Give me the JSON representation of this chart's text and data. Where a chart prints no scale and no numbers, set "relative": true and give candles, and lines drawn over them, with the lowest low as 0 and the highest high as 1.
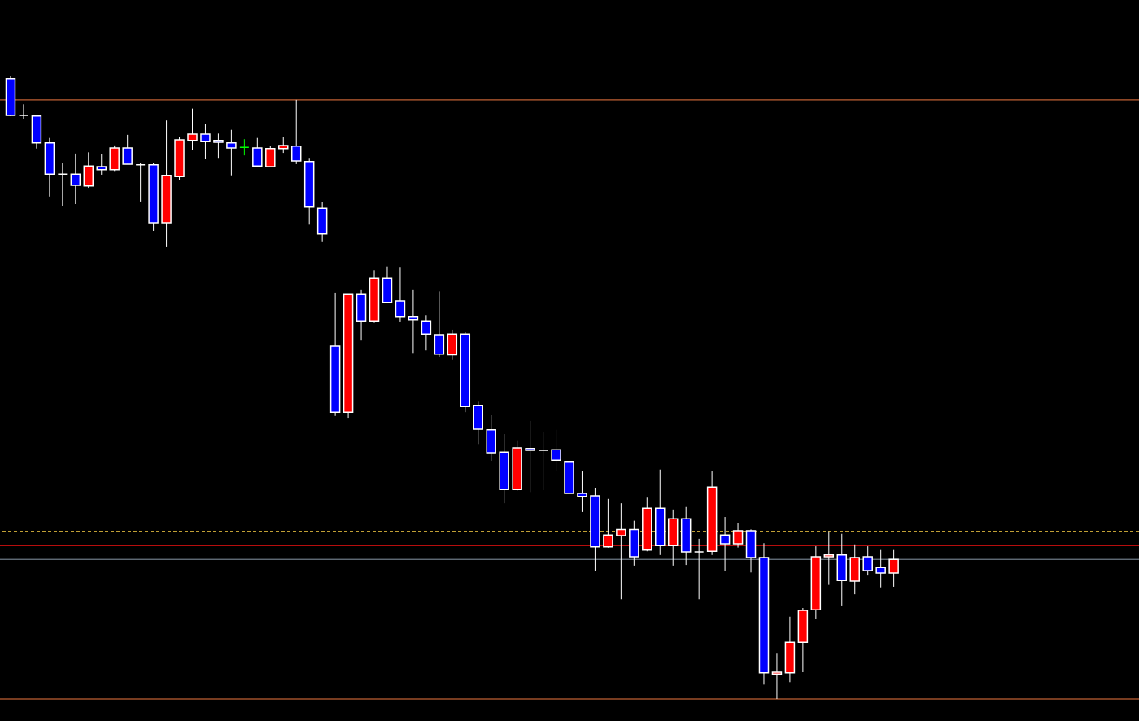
{
  "chart_data": {
    "type": "candlestick",
    "relative": true,
    "categories": [
      null,
      null,
      null,
      null,
      null,
      null,
      null,
      null,
      null,
      null,
      null,
      null,
      null,
      null,
      null,
      null,
      null,
      null,
      null,
      null,
      null,
      null,
      null,
      null,
      null,
      null,
      null,
      null,
      null,
      null,
      null,
      null,
      null,
      null,
      null,
      null,
      null,
      null,
      null,
      null,
      null,
      null,
      null,
      null,
      null,
      null,
      null,
      null,
      null,
      null,
      null,
      null,
      null,
      null,
      null,
      null,
      null,
      null,
      null,
      null,
      null,
      null,
      null,
      null,
      null,
      null,
      null,
      null,
      null
    ],
    "ohlc": [
      [
        0.995,
        1,
        0.935,
        0.936
      ],
      [
        0.936,
        0.954,
        0.93,
        0.936
      ],
      [
        0.935,
        0.936,
        0.883,
        0.892
      ],
      [
        0.892,
        0.9,
        0.806,
        0.842
      ],
      [
        0.842,
        0.86,
        0.791,
        0.842
      ],
      [
        0.842,
        0.875,
        0.794,
        0.824
      ],
      [
        0.823,
        0.877,
        0.82,
        0.855
      ],
      [
        0.854,
        0.874,
        0.841,
        0.849
      ],
      [
        0.849,
        0.888,
        0.847,
        0.884
      ],
      [
        0.884,
        0.905,
        0.858,
        0.858
      ],
      [
        0.857,
        0.86,
        0.798,
        0.857
      ],
      [
        0.857,
        0.86,
        0.751,
        0.764
      ],
      [
        0.764,
        0.928,
        0.725,
        0.84
      ],
      [
        0.838,
        0.901,
        0.832,
        0.897
      ],
      [
        0.896,
        0.947,
        0.881,
        0.906
      ],
      [
        0.906,
        0.923,
        0.867,
        0.894
      ],
      [
        0.896,
        0.907,
        0.868,
        0.893
      ],
      [
        0.892,
        0.913,
        0.84,
        0.884
      ],
      [
        0.885,
        0.898,
        0.872,
        0.885
      ],
      [
        0.884,
        0.9,
        0.853,
        0.855
      ],
      [
        0.854,
        0.887,
        0.854,
        0.883
      ],
      [
        0.883,
        0.902,
        0.876,
        0.888
      ],
      [
        0.887,
        0.961,
        0.858,
        0.863
      ],
      [
        0.862,
        0.868,
        0.761,
        0.789
      ],
      [
        0.787,
        0.797,
        0.733,
        0.746
      ],
      [
        0.566,
        0.652,
        0.454,
        0.46
      ],
      [
        0.46,
        0.649,
        0.451,
        0.649
      ],
      [
        0.649,
        0.656,
        0.576,
        0.606
      ],
      [
        0.606,
        0.688,
        0.604,
        0.675
      ],
      [
        0.675,
        0.694,
        0.635,
        0.636
      ],
      [
        0.639,
        0.692,
        0.605,
        0.613
      ],
      [
        0.613,
        0.656,
        0.555,
        0.608
      ],
      [
        0.606,
        0.615,
        0.559,
        0.585
      ],
      [
        0.584,
        0.654,
        0.549,
        0.553
      ],
      [
        0.552,
        0.592,
        0.544,
        0.585
      ],
      [
        0.585,
        0.589,
        0.46,
        0.469
      ],
      [
        0.471,
        0.478,
        0.409,
        0.433
      ],
      [
        0.432,
        0.455,
        0.382,
        0.395
      ],
      [
        0.396,
        0.425,
        0.314,
        0.336
      ],
      [
        0.336,
        0.415,
        0.334,
        0.403
      ],
      [
        0.402,
        0.446,
        0.332,
        0.399
      ],
      [
        0.399,
        0.429,
        0.335,
        0.399
      ],
      [
        0.4,
        0.432,
        0.366,
        0.383
      ],
      [
        0.381,
        0.389,
        0.289,
        0.33
      ],
      [
        0.33,
        0.365,
        0.3,
        0.325
      ],
      [
        0.326,
        0.339,
        0.206,
        0.244
      ],
      [
        0.244,
        0.321,
        0.243,
        0.263
      ],
      [
        0.262,
        0.314,
        0.16,
        0.272
      ],
      [
        0.272,
        0.286,
        0.214,
        0.228
      ],
      [
        0.239,
        0.323,
        0.237,
        0.306
      ],
      [
        0.306,
        0.368,
        0.231,
        0.246
      ],
      [
        0.246,
        0.304,
        0.214,
        0.289
      ],
      [
        0.289,
        0.308,
        0.215,
        0.236
      ],
      [
        0.236,
        0.257,
        0.16,
        0.236
      ],
      [
        0.237,
        0.365,
        0.231,
        0.34
      ],
      [
        0.263,
        0.292,
        0.205,
        0.249
      ],
      [
        0.249,
        0.282,
        0.243,
        0.27
      ],
      [
        0.27,
        0.272,
        0.203,
        0.227
      ],
      [
        0.227,
        0.25,
        0.023,
        0.042
      ],
      [
        0.04,
        0.074,
        0,
        0.043
      ],
      [
        0.042,
        0.132,
        0.027,
        0.091
      ],
      [
        0.091,
        0.146,
        0.043,
        0.142
      ],
      [
        0.143,
        0.245,
        0.129,
        0.228
      ],
      [
        0.228,
        0.269,
        0.183,
        0.231
      ],
      [
        0.231,
        0.265,
        0.15,
        0.19
      ],
      [
        0.189,
        0.248,
        0.168,
        0.227
      ],
      [
        0.228,
        0.245,
        0.198,
        0.206
      ],
      [
        0.211,
        0.239,
        0.179,
        0.202
      ],
      [
        0.202,
        0.239,
        0.18,
        0.224
      ]
    ],
    "colors": [
      "#0000ff",
      "#ffffff",
      "#0000ff",
      "#0000ff",
      "#ffffff",
      "#0000ff",
      "#ff0000",
      "#0000ff",
      "#ff0000",
      "#0000ff",
      "#ffffff",
      "#0000ff",
      "#ff0000",
      "#ff0000",
      "#ff0000",
      "#0000ff",
      "#0000ff",
      "#0000ff",
      "#00ff00",
      "#0000ff",
      "#ff0000",
      "#ff0000",
      "#0000ff",
      "#0000ff",
      "#0000ff",
      "#0000ff",
      "#ff0000",
      "#0000ff",
      "#ff0000",
      "#0000ff",
      "#0000ff",
      "#0000ff",
      "#0000ff",
      "#0000ff",
      "#ff0000",
      "#0000ff",
      "#0000ff",
      "#0000ff",
      "#0000ff",
      "#ff0000",
      "#0000ff",
      "#ffffff",
      "#0000ff",
      "#0000ff",
      "#0000ff",
      "#0000ff",
      "#ff0000",
      "#ff0000",
      "#0000ff",
      "#ff0000",
      "#0000ff",
      "#ff0000",
      "#0000ff",
      "#ffffff",
      "#ff0000",
      "#0000ff",
      "#ff0000",
      "#0000ff",
      "#0000ff",
      "#ff0000",
      "#ff0000",
      "#ff0000",
      "#ff0000",
      "#ff0000",
      "#0000ff",
      "#ff0000",
      "#0000ff",
      "#0000ff",
      "#ff0000"
    ],
    "ref_lines": [
      {
        "axis": "y",
        "value": 0.961,
        "color": "#f07840",
        "line_style": "solid"
      },
      {
        "axis": "y",
        "value": 0,
        "color": "#f07840",
        "line_style": "solid"
      },
      {
        "axis": "y",
        "value": 0.269,
        "color": "#e8c040",
        "line_style": "dashed"
      },
      {
        "axis": "y",
        "value": 0.246,
        "color": "#e01010",
        "line_style": "solid"
      },
      {
        "axis": "y",
        "value": 0.224,
        "color": "#8898a8",
        "line_style": "solid"
      }
    ],
    "line_style": "solid"
  }
}
